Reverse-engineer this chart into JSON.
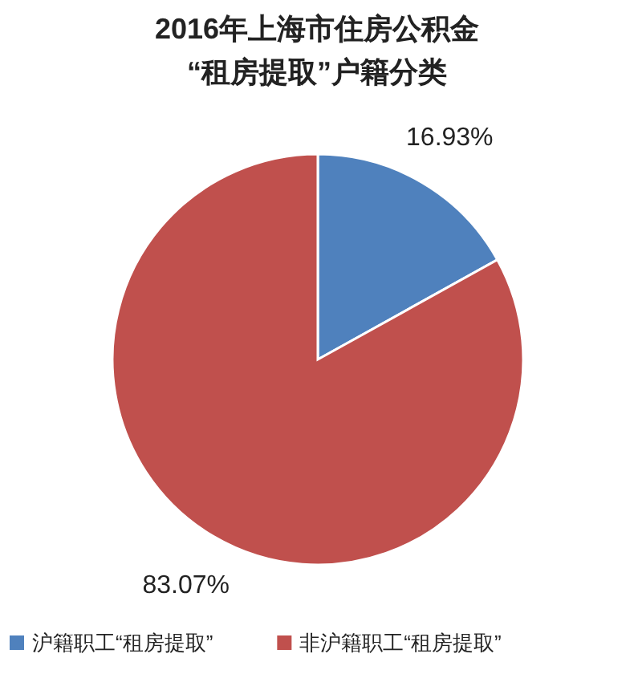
{
  "chart_data": {
    "type": "pie",
    "title": "2016年上海市住房公积金\n“租房提取”户籍分类",
    "categories": [
      "沪籍职工“租房提取”",
      "非沪籍职工“租房提取”"
    ],
    "values": [
      16.93,
      83.07
    ],
    "colors": [
      "#4f81bd",
      "#c0504d"
    ],
    "value_labels": [
      "16.93%",
      "83.07%"
    ],
    "legend": "bottom"
  }
}
